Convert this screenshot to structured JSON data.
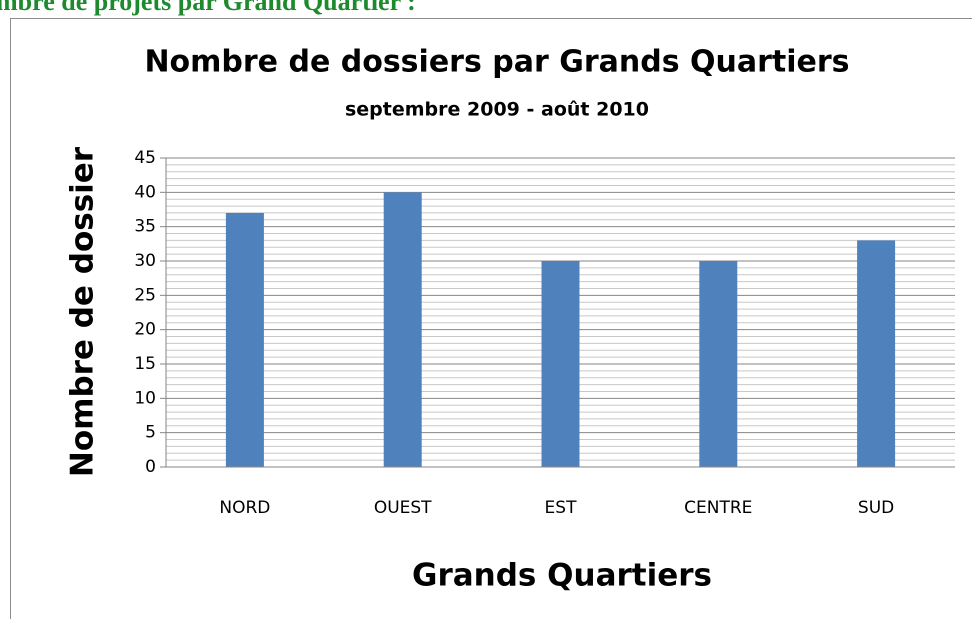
{
  "heading": "mbre de projets par Grand Quartier :",
  "chart_data": {
    "type": "bar",
    "title": "Nombre de dossiers par Grands Quartiers",
    "subtitle": "septembre 2009 - août 2010",
    "x_label": "Grands Quartiers",
    "y_label": "Nombre de dossier",
    "categories": [
      "NORD",
      "OUEST",
      "EST",
      "CENTRE",
      "SUD"
    ],
    "values": [
      37,
      40,
      30,
      30,
      33
    ],
    "color": "#4f81bd",
    "ylim": [
      0,
      45
    ],
    "yticks": [
      0,
      5,
      10,
      15,
      20,
      25,
      30,
      35,
      40,
      45
    ],
    "grid": true
  }
}
